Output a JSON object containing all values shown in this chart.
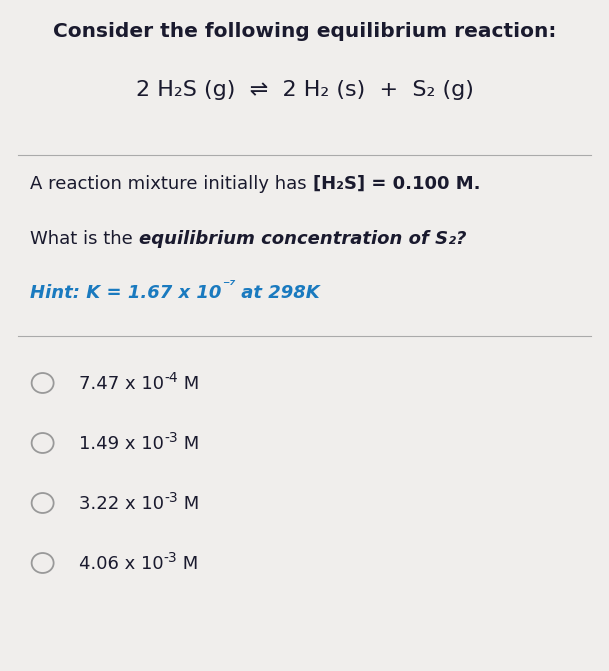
{
  "bg_color": "#f0eeec",
  "title_line": "Consider the following equilibrium reaction:",
  "title_fontsize": 14.5,
  "equation_fontsize": 16,
  "body_fontsize": 13,
  "hint_color": "#1a7abf",
  "hint_fontsize": 13,
  "choice_fontsize": 13,
  "line_color": "#aaaaaa",
  "text_color": "#1a1a2e",
  "circle_color": "#999999",
  "body_line1_normal": "A reaction mixture initially has ",
  "body_line1_bold": "[H₂S] = 0.100 M.",
  "question_normal": "What is the ",
  "question_bold": "equilibrium concentration of S₂",
  "question_end": "?",
  "choices": [
    "7.47 x 10",
    "1.49 x 10",
    "3.22 x 10",
    "4.06 x 10"
  ],
  "choice_exps": [
    "-4",
    "-3",
    "-3",
    "-3"
  ],
  "choice_suffix": " M"
}
